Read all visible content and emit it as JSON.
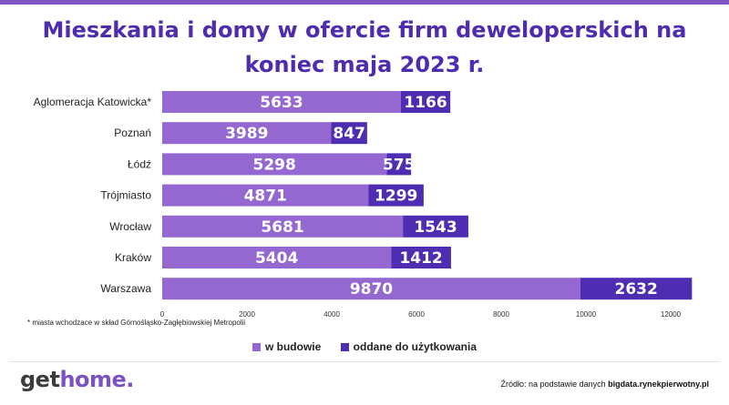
{
  "title_lines": [
    "Mieszkania i domy w ofercie firm deweloperskich na",
    "koniec maja 2023 r."
  ],
  "footnote": "* miasta wchodzace w skład Górnośląsko-Zagłębiowskiej Metropolii",
  "source": {
    "prefix": "Źródło: na podstawie danych",
    "site": "bigdata.rynekpierwotny.pl"
  },
  "logo": {
    "get": "get",
    "home": "home."
  },
  "colors": {
    "w_budowie": "#9468d0",
    "oddane": "#4e2db2",
    "title": "#4f2bb0"
  },
  "chart_data": {
    "type": "bar",
    "orientation": "horizontal",
    "stacked": true,
    "categories": [
      "Aglomeracja Katowicka*",
      "Poznań",
      "Łódź",
      "Trójmiasto",
      "Wrocław",
      "Kraków",
      "Warszawa"
    ],
    "series": [
      {
        "name": "w budowie",
        "values": [
          5633,
          3989,
          5298,
          4871,
          5681,
          5404,
          9870
        ]
      },
      {
        "name": "oddane do użytkowania",
        "values": [
          1166,
          847,
          575,
          1299,
          1543,
          1412,
          2632
        ]
      }
    ],
    "xlim": [
      0,
      12000
    ],
    "xticks": [
      0,
      2000,
      4000,
      6000,
      8000,
      10000,
      12000
    ],
    "grid": false,
    "legend": "bottom-center"
  }
}
